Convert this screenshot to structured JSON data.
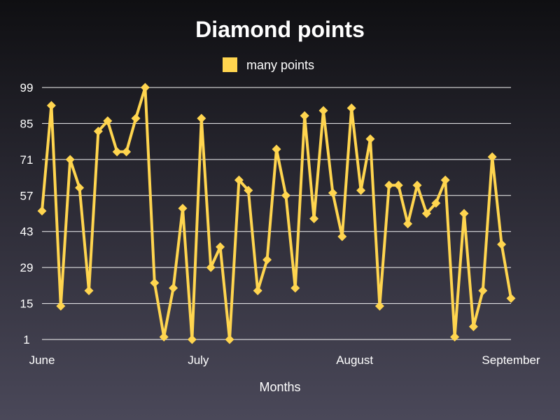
{
  "chart_data": {
    "type": "line",
    "title": "Diamond points",
    "xlabel": "Months",
    "ylabel": "",
    "x_tick_labels": [
      "June",
      "July",
      "August",
      "September"
    ],
    "y_ticks": [
      1,
      15,
      29,
      43,
      57,
      71,
      85,
      99
    ],
    "ylim": [
      1,
      99
    ],
    "grid": "horizontal",
    "legend_position": "top-center",
    "series": [
      {
        "name": "many points",
        "color": "#ffd54f",
        "marker": "diamond",
        "values": [
          51,
          92,
          14,
          71,
          60,
          20,
          82,
          86,
          74,
          74,
          87,
          99,
          23,
          2,
          21,
          52,
          1,
          87,
          29,
          37,
          1,
          63,
          59,
          20,
          32,
          75,
          57,
          21,
          88,
          48,
          90,
          58,
          41,
          91,
          59,
          79,
          14,
          61,
          61,
          46,
          61,
          50,
          54,
          63,
          2,
          50,
          6,
          20,
          72,
          38,
          17
        ]
      }
    ]
  }
}
